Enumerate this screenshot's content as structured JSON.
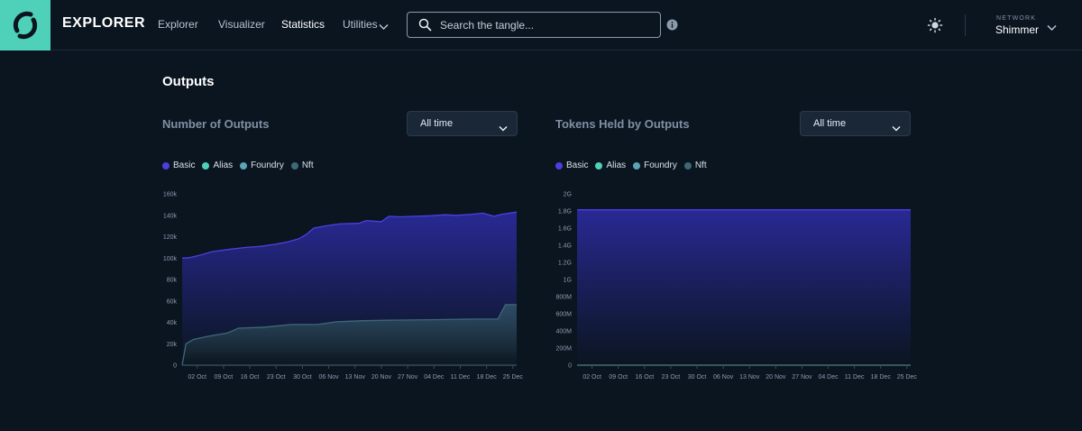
{
  "header": {
    "brand": "EXPLORER",
    "nav": [
      {
        "label": "Explorer",
        "active": false
      },
      {
        "label": "Visualizer",
        "active": false
      },
      {
        "label": "Statistics",
        "active": true
      },
      {
        "label": "Utilities",
        "active": false
      }
    ],
    "search_placeholder": "Search the tangle...",
    "network_label": "NETWORK",
    "network_value": "Shimmer",
    "icons": [
      "logo-icon",
      "chevron-down-icon",
      "search-icon",
      "info-icon",
      "sun-icon",
      "chevron-down-icon"
    ]
  },
  "page": {
    "title": "Outputs"
  },
  "charts": [
    {
      "title": "Number of Outputs",
      "range_select": "All time",
      "legend": [
        {
          "label": "Basic",
          "color": "#4c3fe0"
        },
        {
          "label": "Alias",
          "color": "#4fd1b9"
        },
        {
          "label": "Foundry",
          "color": "#5aa6b8"
        },
        {
          "label": "Nft",
          "color": "#3e6877"
        }
      ]
    },
    {
      "title": "Tokens Held by Outputs",
      "range_select": "All time",
      "legend": [
        {
          "label": "Basic",
          "color": "#4c3fe0"
        },
        {
          "label": "Alias",
          "color": "#4fd1b9"
        },
        {
          "label": "Foundry",
          "color": "#5aa6b8"
        },
        {
          "label": "Nft",
          "color": "#3e6877"
        }
      ]
    }
  ],
  "chart_data": [
    {
      "type": "area",
      "title": "Number of Outputs",
      "x_ticks": [
        "02 Oct",
        "09 Oct",
        "16 Oct",
        "23 Oct",
        "30 Oct",
        "06 Nov",
        "13 Nov",
        "20 Nov",
        "27 Nov",
        "04 Dec",
        "11 Dec",
        "18 Dec",
        "25 Dec"
      ],
      "y_ticks": [
        "0",
        "20k",
        "40k",
        "60k",
        "80k",
        "100k",
        "120k",
        "140k",
        "160k"
      ],
      "ylim": [
        0,
        160000
      ],
      "x_range": [
        "2022-09-28",
        "2022-12-26"
      ],
      "series": [
        {
          "name": "Basic",
          "color": "#4c3fe0",
          "x": [
            "2022-09-28",
            "2022-09-30",
            "2022-10-03",
            "2022-10-06",
            "2022-10-10",
            "2022-10-15",
            "2022-10-19",
            "2022-10-23",
            "2022-10-26",
            "2022-10-29",
            "2022-10-31",
            "2022-11-02",
            "2022-11-05",
            "2022-11-09",
            "2022-11-14",
            "2022-11-16",
            "2022-11-20",
            "2022-11-22",
            "2022-11-25",
            "2022-11-29",
            "2022-12-03",
            "2022-12-07",
            "2022-12-10",
            "2022-12-14",
            "2022-12-17",
            "2022-12-20",
            "2022-12-22",
            "2022-12-26"
          ],
          "values": [
            100000,
            100500,
            103000,
            106000,
            108000,
            110000,
            111000,
            113000,
            115000,
            118000,
            122000,
            128000,
            130000,
            132000,
            132500,
            135000,
            134000,
            139000,
            138500,
            139000,
            139500,
            140500,
            140000,
            141000,
            142000,
            139000,
            141000,
            143000
          ]
        },
        {
          "name": "Alias",
          "color": "#4fd1b9",
          "x": [
            "2022-09-28",
            "2022-12-26"
          ],
          "values": [
            500,
            800
          ]
        },
        {
          "name": "Foundry",
          "color": "#5aa6b8",
          "x": [
            "2022-09-28",
            "2022-12-26"
          ],
          "values": [
            0,
            0
          ]
        },
        {
          "name": "Nft",
          "color": "#3e6877",
          "x": [
            "2022-09-28",
            "2022-09-29",
            "2022-10-01",
            "2022-10-05",
            "2022-10-10",
            "2022-10-13",
            "2022-10-20",
            "2022-10-27",
            "2022-11-03",
            "2022-11-08",
            "2022-11-15",
            "2022-11-22",
            "2022-12-05",
            "2022-12-15",
            "2022-12-21",
            "2022-12-23",
            "2022-12-26"
          ],
          "values": [
            0,
            20000,
            24000,
            27000,
            30000,
            34500,
            35500,
            38000,
            38000,
            40500,
            41500,
            42000,
            42500,
            43000,
            43000,
            56500,
            56500
          ]
        }
      ]
    },
    {
      "type": "area",
      "title": "Tokens Held by Outputs",
      "x_ticks": [
        "02 Oct",
        "09 Oct",
        "16 Oct",
        "23 Oct",
        "30 Oct",
        "06 Nov",
        "13 Nov",
        "20 Nov",
        "27 Nov",
        "04 Dec",
        "11 Dec",
        "18 Dec",
        "25 Dec"
      ],
      "y_ticks": [
        "0",
        "200M",
        "400M",
        "600M",
        "800M",
        "1G",
        "1.2G",
        "1.4G",
        "1.6G",
        "1.8G",
        "2G"
      ],
      "ylim": [
        0,
        2000000000
      ],
      "x_range": [
        "2022-09-28",
        "2022-12-26"
      ],
      "series": [
        {
          "name": "Basic",
          "color": "#4c3fe0",
          "x": [
            "2022-09-28",
            "2022-12-26"
          ],
          "values": [
            1813620509,
            1813620509
          ]
        },
        {
          "name": "Alias",
          "color": "#4fd1b9",
          "x": [
            "2022-09-28",
            "2022-12-26"
          ],
          "values": [
            0,
            0
          ]
        },
        {
          "name": "Foundry",
          "color": "#5aa6b8",
          "x": [
            "2022-09-28",
            "2022-12-26"
          ],
          "values": [
            0,
            0
          ]
        },
        {
          "name": "Nft",
          "color": "#3e6877",
          "x": [
            "2022-09-28",
            "2022-12-26"
          ],
          "values": [
            0,
            0
          ]
        }
      ]
    }
  ]
}
